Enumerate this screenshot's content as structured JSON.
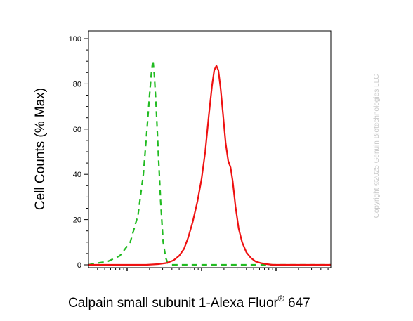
{
  "chart_data": {
    "type": "line",
    "xlabel": "Calpain small subunit 1-Alexa Fluor",
    "xlabel_sup": "®",
    "xlabel_tail": " 647",
    "ylabel": "Cell Counts (% Max)",
    "x_scale": "log",
    "ylim": [
      0,
      100
    ],
    "y_ticks": [
      "0",
      "20",
      "40",
      "60",
      "80",
      "100"
    ],
    "grid": false,
    "legend": "none",
    "series": [
      {
        "style": "dashed",
        "color": "#22bb22",
        "points": [
          [
            12,
            0
          ],
          [
            22,
            0
          ],
          [
            35,
            0.5
          ],
          [
            55,
            1.5
          ],
          [
            80,
            4
          ],
          [
            110,
            10
          ],
          [
            140,
            22
          ],
          [
            165,
            40
          ],
          [
            185,
            60
          ],
          [
            200,
            75
          ],
          [
            212,
            85
          ],
          [
            222,
            90.5
          ],
          [
            232,
            84
          ],
          [
            245,
            70
          ],
          [
            262,
            50
          ],
          [
            282,
            28
          ],
          [
            305,
            10
          ],
          [
            330,
            3
          ],
          [
            355,
            0.5
          ],
          [
            400,
            0
          ],
          [
            700,
            0
          ],
          [
            1000000,
            0
          ]
        ]
      },
      {
        "style": "solid",
        "color": "#ee1111",
        "points": [
          [
            12,
            0
          ],
          [
            100,
            0
          ],
          [
            180,
            0
          ],
          [
            260,
            0.3
          ],
          [
            340,
            0.8
          ],
          [
            420,
            2
          ],
          [
            500,
            4
          ],
          [
            580,
            7
          ],
          [
            660,
            12
          ],
          [
            760,
            19
          ],
          [
            880,
            28
          ],
          [
            1000,
            38
          ],
          [
            1120,
            50
          ],
          [
            1250,
            66
          ],
          [
            1380,
            79
          ],
          [
            1480,
            86
          ],
          [
            1580,
            88
          ],
          [
            1680,
            86
          ],
          [
            1800,
            78
          ],
          [
            1950,
            66
          ],
          [
            2100,
            54
          ],
          [
            2280,
            46
          ],
          [
            2450,
            43
          ],
          [
            2620,
            37
          ],
          [
            2850,
            26
          ],
          [
            3150,
            16
          ],
          [
            3500,
            10
          ],
          [
            4000,
            5.5
          ],
          [
            4600,
            3
          ],
          [
            5300,
            1.5
          ],
          [
            6200,
            0.8
          ],
          [
            7500,
            0.3
          ],
          [
            9000,
            0
          ],
          [
            1000000,
            0
          ]
        ]
      }
    ]
  },
  "watermark": "Copyright ©2025 Genuin Biotechnologies LLC",
  "colors": {
    "axis": "#000000",
    "series_green": "#22bb22",
    "series_red": "#ee1111",
    "watermark": "#c8c8c8"
  }
}
